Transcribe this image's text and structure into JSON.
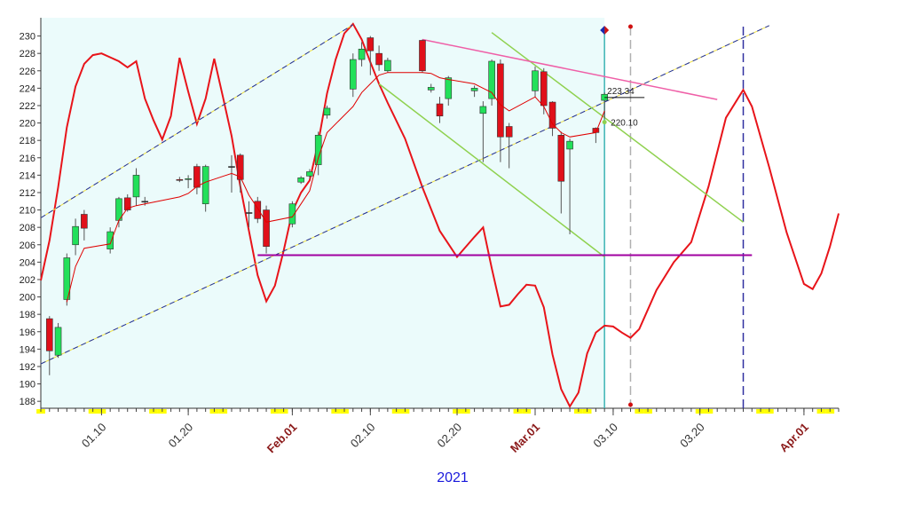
{
  "chart_data": {
    "type": "candlestick",
    "xlabel": "2021",
    "x": [
      "01.04",
      "01.05",
      "01.06",
      "01.07",
      "01.08",
      "01.11",
      "01.12",
      "01.13",
      "01.14",
      "01.15",
      "01.19",
      "01.20",
      "01.21",
      "01.22",
      "01.25",
      "01.26",
      "01.27",
      "01.28",
      "01.29",
      "02.01",
      "02.02",
      "02.03",
      "02.04",
      "02.05",
      "02.08",
      "02.09",
      "02.10",
      "02.11",
      "02.12",
      "02.16",
      "02.17",
      "02.18",
      "02.19",
      "02.22",
      "02.23",
      "02.24",
      "02.25",
      "02.26",
      "03.01",
      "03.02",
      "03.03",
      "03.04",
      "03.05",
      "03.08",
      "03.09"
    ],
    "open": [
      197.5,
      193.3,
      199.7,
      206,
      209.5,
      205.5,
      208.8,
      211.4,
      211.5,
      211,
      213.5,
      213.5,
      215,
      210.7,
      215,
      216.3,
      209.7,
      211,
      210,
      208.4,
      213.2,
      213.9,
      215.2,
      220.9,
      223.9,
      227.3,
      229.8,
      228,
      226,
      229.5,
      223.8,
      222.2,
      222.8,
      223.7,
      221.1,
      222.8,
      226.8,
      219.6,
      223.7,
      225.9,
      222.4,
      218.6,
      217,
      219.4,
      222.6
    ],
    "high": [
      197.8,
      197,
      205,
      209,
      210,
      208,
      211.5,
      211.8,
      214.8,
      211.5,
      213.8,
      214,
      215.3,
      215.2,
      216.3,
      216.5,
      211,
      211.5,
      210.5,
      211,
      213.9,
      214.7,
      219,
      222,
      228,
      229.3,
      230,
      228.9,
      227.5,
      229.6,
      224.5,
      223,
      225.4,
      224.3,
      222.5,
      227.3,
      227.3,
      220,
      226.5,
      226.3,
      222.5,
      219,
      218.2,
      219.5,
      223.5
    ],
    "low": [
      191,
      193,
      199,
      204.8,
      206.5,
      205,
      208,
      209.8,
      210.5,
      210.5,
      213.2,
      212.5,
      211.8,
      209.8,
      212,
      212,
      208,
      208.5,
      205,
      208,
      213,
      213.6,
      214,
      220.5,
      223,
      226.5,
      225.5,
      226,
      225.8,
      225.8,
      223.5,
      220,
      222,
      223,
      215.5,
      222,
      215.5,
      214.8,
      223,
      221,
      218.5,
      209.6,
      207.2,
      217.7,
      220.5
    ],
    "close": [
      193.8,
      196.5,
      204.5,
      208.1,
      207.9,
      207.5,
      211.3,
      210,
      214,
      211,
      213.4,
      213.6,
      212.6,
      215,
      215,
      213.5,
      209.7,
      209,
      205.8,
      210.7,
      213.7,
      214.4,
      218.6,
      221.7,
      227.3,
      228.5,
      228.3,
      226.7,
      227.2,
      226,
      224.1,
      220.8,
      225.2,
      224,
      221.9,
      227.1,
      218.4,
      218.4,
      226,
      222,
      219.4,
      213.3,
      217.9,
      218.9,
      223.3
    ],
    "up_color": "#22e05a",
    "down_color": "#e0101a",
    "ma": [
      null,
      null,
      199.4,
      203.5,
      205.6,
      206.1,
      208.8,
      210.2,
      210.5,
      210.7,
      211.5,
      211.9,
      212.7,
      213.2,
      214.2,
      213.8,
      211.7,
      210.2,
      208.6,
      209.2,
      210.7,
      212.2,
      216,
      218.9,
      221.9,
      223.5,
      224.5,
      225.5,
      225.8,
      225.8,
      225.7,
      225.2,
      225,
      224.5,
      224,
      223.5,
      222.1,
      221.4,
      223,
      221.9,
      219.9,
      218.9,
      218.4,
      218.9,
      221.4
    ],
    "ma_color": "#e00000",
    "lines": [
      {
        "x": [
          "01.03",
          "01.04",
          "01.05",
          "01.06",
          "01.07",
          "01.08",
          "01.09",
          "01.10",
          "01.12",
          "01.13",
          "01.14",
          "01.15",
          "01.16",
          "01.17",
          "01.18",
          "01.19",
          "01.20",
          "01.21",
          "01.22",
          "01.23",
          "01.24",
          "01.25",
          "01.26",
          "01.27",
          "01.28",
          "01.29",
          "01.30",
          "01.31",
          "02.01",
          "02.02",
          "02.03",
          "02.04",
          "02.05",
          "02.06",
          "02.07",
          "02.08",
          "02.09",
          "02.10",
          "02.11",
          "02.12",
          "02.14",
          "02.16",
          "02.18",
          "02.20",
          "02.22",
          "02.23",
          "02.24",
          "02.25",
          "02.26",
          "02.27",
          "02.28",
          "03.01",
          "03.02",
          "03.03",
          "03.04",
          "03.05",
          "03.06",
          "03.07",
          "03.08",
          "03.09",
          "03.10",
          "03.11",
          "03.12",
          "03.13",
          "03.15",
          "03.17",
          "03.19",
          "03.21",
          "03.23",
          "03.25",
          "03.26",
          "03.28",
          "03.30",
          "04.01",
          "04.02",
          "04.03",
          "04.04",
          "04.05"
        ],
        "values": [
          201.9,
          206.5,
          212.6,
          219.5,
          224.2,
          226.8,
          227.8,
          228,
          227.1,
          226.4,
          227.1,
          222.8,
          220.3,
          218.1,
          220.8,
          227.5,
          223.6,
          219.9,
          222.8,
          227.4,
          223,
          218.5,
          212.7,
          207.6,
          202.5,
          199.5,
          201.3,
          205.3,
          209.8,
          212,
          213.4,
          217.8,
          223.4,
          227.3,
          230.3,
          231.4,
          229.6,
          227,
          224.5,
          222.3,
          218.2,
          212.6,
          207.6,
          204.6,
          206.9,
          208,
          203.3,
          198.9,
          199.1,
          200.3,
          201.4,
          201.3,
          198.8,
          193.4,
          189.4,
          187.4,
          189,
          193.5,
          195.9,
          196.7,
          196.6,
          195.9,
          195.3,
          196.3,
          200.8,
          204,
          206.3,
          212.7,
          220.6,
          223.8,
          221.9,
          214.9,
          207.4,
          201.5,
          200.9,
          202.7,
          205.8,
          209.6
        ],
        "color": "#e8141a",
        "width": 2
      },
      {
        "x": [
          "01.03",
          "02.08"
        ],
        "values": [
          209.1,
          231.3
        ],
        "color": "#1f2fa0",
        "color2": "#f0e040",
        "dash": true,
        "width": 1
      },
      {
        "x": [
          "01.03",
          "03.28"
        ],
        "values": [
          192.3,
          231.2
        ],
        "color": "#1f2fa0",
        "color2": "#f0e040",
        "dash": true,
        "width": 1
      },
      {
        "x": [
          "02.24",
          "03.25"
        ],
        "values": [
          230.4,
          208.6
        ],
        "color": "#8fd14f",
        "width": 1.5
      },
      {
        "x": [
          "02.11",
          "03.09"
        ],
        "values": [
          224.5,
          204.6
        ],
        "color": "#8fd14f",
        "width": 1.5
      },
      {
        "x": [
          "02.16",
          "03.22"
        ],
        "values": [
          229.6,
          222.7
        ],
        "color": "#ef5fa7",
        "width": 1.5
      },
      {
        "x": [
          "01.28",
          "03.26"
        ],
        "values": [
          204.8,
          204.8
        ],
        "color": "#a000a0",
        "width": 2
      }
    ],
    "vlines": [
      {
        "x": "03.09",
        "color": "#3cb4b4",
        "marker": "diamond"
      },
      {
        "x": "03.12",
        "color": "#b0b0b0",
        "dash": true,
        "marker": "dot"
      },
      {
        "x": "03.25",
        "color": "#3030a0",
        "dash": true
      }
    ],
    "annotations": [
      {
        "x": "03.09",
        "value": 223.34,
        "label": "223.34"
      },
      {
        "x": "03.09",
        "value": 220.1,
        "label": "220.10"
      }
    ],
    "shade_until": "03.09",
    "shade_color": "#ebfbfb",
    "weekend_color": "#ffff00",
    "month_start_color": "#8b1a1a",
    "xlim": [
      "01.03",
      "04.05"
    ],
    "xticks": [
      "01.10",
      "01.20",
      {
        "value": "02.01",
        "label": "Feb.01"
      },
      "02.10",
      "02.20",
      {
        "value": "03.01",
        "label": "Mar.01"
      },
      "03.10",
      "03.20",
      {
        "value": "04.01",
        "label": "Apr.01"
      }
    ],
    "ylim": [
      187.2,
      232.1
    ],
    "yticks": [
      188,
      190,
      192,
      194,
      196,
      198,
      200,
      202,
      204,
      206,
      208,
      210,
      212,
      214,
      216,
      218,
      220,
      222,
      224,
      226,
      228,
      230
    ]
  }
}
